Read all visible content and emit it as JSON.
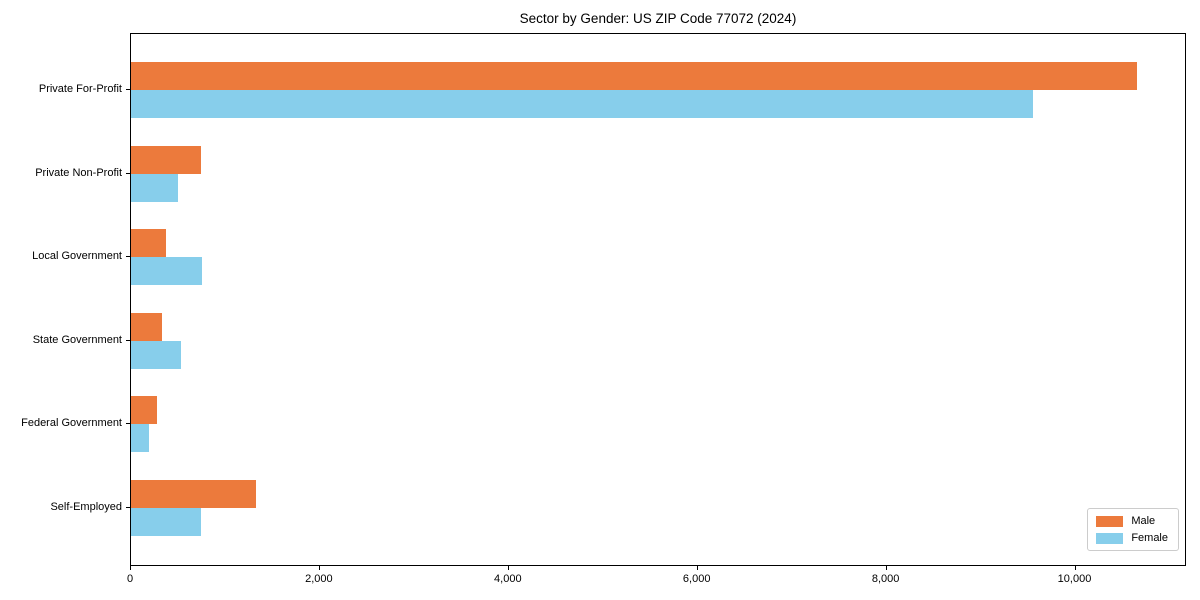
{
  "title": "Sector by Gender: US ZIP Code 77072 (2024)",
  "chart_data": {
    "type": "bar",
    "orientation": "horizontal",
    "title": "Sector by Gender: US ZIP Code 77072 (2024)",
    "xlabel": "",
    "ylabel": "",
    "categories": [
      "Private For-Profit",
      "Private Non-Profit",
      "Local Government",
      "State Government",
      "Federal Government",
      "Self-Employed"
    ],
    "series": [
      {
        "name": "Male",
        "color": "#ec7a3c",
        "values": [
          10650,
          740,
          370,
          330,
          275,
          1320
        ]
      },
      {
        "name": "Female",
        "color": "#87ceeb",
        "values": [
          9545,
          495,
          755,
          530,
          185,
          740
        ]
      }
    ],
    "xlim": [
      0,
      11180
    ],
    "x_ticks": [
      0,
      2000,
      4000,
      6000,
      8000,
      10000
    ],
    "x_tick_labels": [
      "0",
      "2,000",
      "4,000",
      "6,000",
      "8,000",
      "10,000"
    ],
    "grid": false,
    "legend": {
      "position": "lower right",
      "entries": [
        "Male",
        "Female"
      ]
    }
  },
  "colors": {
    "male": "#ec7a3c",
    "female": "#87ceeb",
    "spine": "#000000",
    "legend_border": "#cccccc",
    "background": "#ffffff",
    "text": "#000000"
  }
}
